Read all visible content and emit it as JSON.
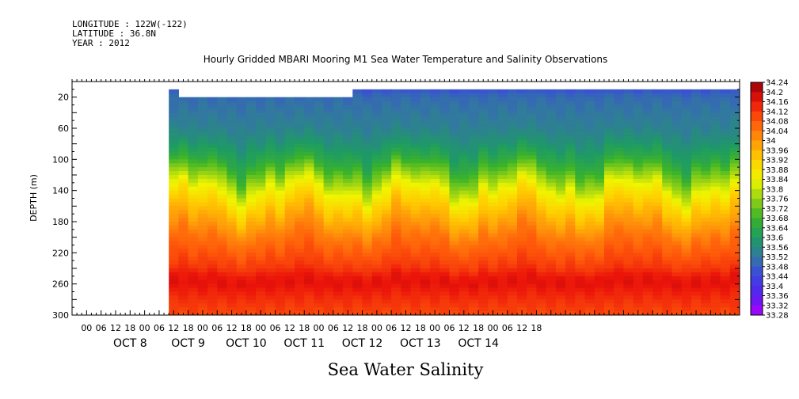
{
  "header": {
    "longitude": "LONGITUDE : 122W(-122)",
    "latitude": "LATITUDE : 36.8N",
    "year": "YEAR : 2012"
  },
  "footer": "Sea Water Salinity",
  "chart_data": {
    "type": "heatmap",
    "title": "Hourly Gridded MBARI Mooring M1 Sea Water Temperature and Salinity Observations",
    "ylabel": "DEPTH (m)",
    "xlabel": "",
    "y_axis": {
      "range": [
        0,
        300
      ],
      "inverted": true,
      "tick_labels": [
        "20",
        "60",
        "100",
        "140",
        "180",
        "220",
        "260",
        "300"
      ],
      "tick_values": [
        20,
        60,
        100,
        140,
        180,
        220,
        260,
        300
      ]
    },
    "x_axis": {
      "hour_labels": [
        "00",
        "06",
        "12",
        "18",
        "00",
        "06",
        "12",
        "18",
        "00",
        "06",
        "12",
        "18",
        "00",
        "06",
        "12",
        "18",
        "00",
        "06",
        "12",
        "18",
        "00",
        "06",
        "12",
        "18",
        "00",
        "06",
        "12",
        "18",
        "00",
        "06",
        "12",
        "18"
      ],
      "day_labels": [
        "OCT  8",
        "OCT  9",
        "OCT 10",
        "OCT 11",
        "OCT 12",
        "OCT 13",
        "OCT 14"
      ],
      "range_hours": [
        -12,
        264
      ],
      "data_start_hour": 0
    },
    "colorbar": {
      "min": 33.28,
      "max": 34.24,
      "step": 0.04,
      "labels": [
        "34.24",
        "34.2",
        "34.16",
        "34.12",
        "34.08",
        "34.04",
        "34",
        "33.96",
        "33.92",
        "33.88",
        "33.84",
        "33.8",
        "33.76",
        "33.72",
        "33.68",
        "33.64",
        "33.6",
        "33.56",
        "33.52",
        "33.48",
        "33.44",
        "33.4",
        "33.36",
        "33.32",
        "33.28"
      ]
    },
    "profile": {
      "depth": [
        10,
        20,
        40,
        60,
        80,
        100,
        120,
        140,
        160,
        180,
        200,
        220,
        240,
        250,
        260,
        280,
        300
      ],
      "salinity": [
        33.46,
        33.5,
        33.52,
        33.54,
        33.58,
        33.64,
        33.74,
        33.84,
        33.92,
        33.98,
        34.04,
        34.08,
        34.12,
        34.16,
        34.17,
        34.13,
        34.1
      ]
    },
    "missing_data": [
      {
        "hours": [
          0,
          28
        ],
        "depth": [
          10,
          300
        ]
      },
      {
        "hours": [
          34,
          106
        ],
        "depth": [
          10,
          20
        ]
      },
      {
        "hours": [
          75,
          77
        ],
        "depth": [
          10,
          60
        ]
      }
    ]
  }
}
